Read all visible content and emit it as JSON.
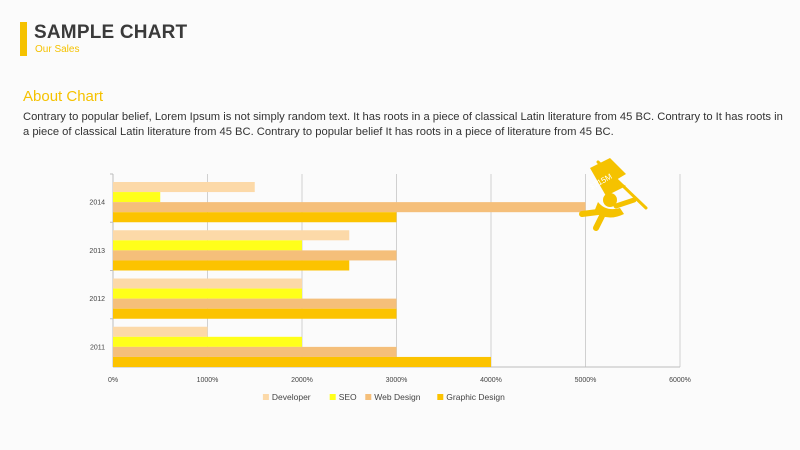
{
  "header": {
    "title": "SAMPLE CHART",
    "subtitle": "Our Sales"
  },
  "about": {
    "heading": "About Chart",
    "text": "Contrary to popular belief, Lorem Ipsum is not simply random text. It has roots in a piece of classical Latin literature from 45 BC. Contrary to It has roots in a piece of classical Latin literature from 45 BC. Contrary to popular belief It has roots in a piece of literature from 45 BC."
  },
  "mascot": {
    "icon": "flag-runner-icon",
    "flag_label": "$715M"
  },
  "colors": {
    "accent": "#f5c200",
    "Developer": "#fcd9a8",
    "SEO": "#ffff1a",
    "Web Design": "#f5bf7a",
    "Graphic Design": "#fcc300"
  },
  "chart_data": {
    "type": "bar",
    "orientation": "horizontal",
    "categories": [
      "2011",
      "2012",
      "2013",
      "2014"
    ],
    "series": [
      {
        "name": "Developer",
        "values": [
          1000,
          2000,
          2500,
          1500
        ]
      },
      {
        "name": "SEO",
        "values": [
          2000,
          2000,
          2000,
          500
        ]
      },
      {
        "name": "Web Design",
        "values": [
          3000,
          3000,
          3000,
          5000
        ]
      },
      {
        "name": "Graphic Design",
        "values": [
          4000,
          3000,
          2500,
          3000
        ]
      }
    ],
    "xlim": [
      0,
      6000
    ],
    "x_ticks": [
      "0%",
      "1000%",
      "2000%",
      "3000%",
      "4000%",
      "5000%",
      "6000%"
    ],
    "grid": "vertical",
    "legend": "bottom"
  }
}
